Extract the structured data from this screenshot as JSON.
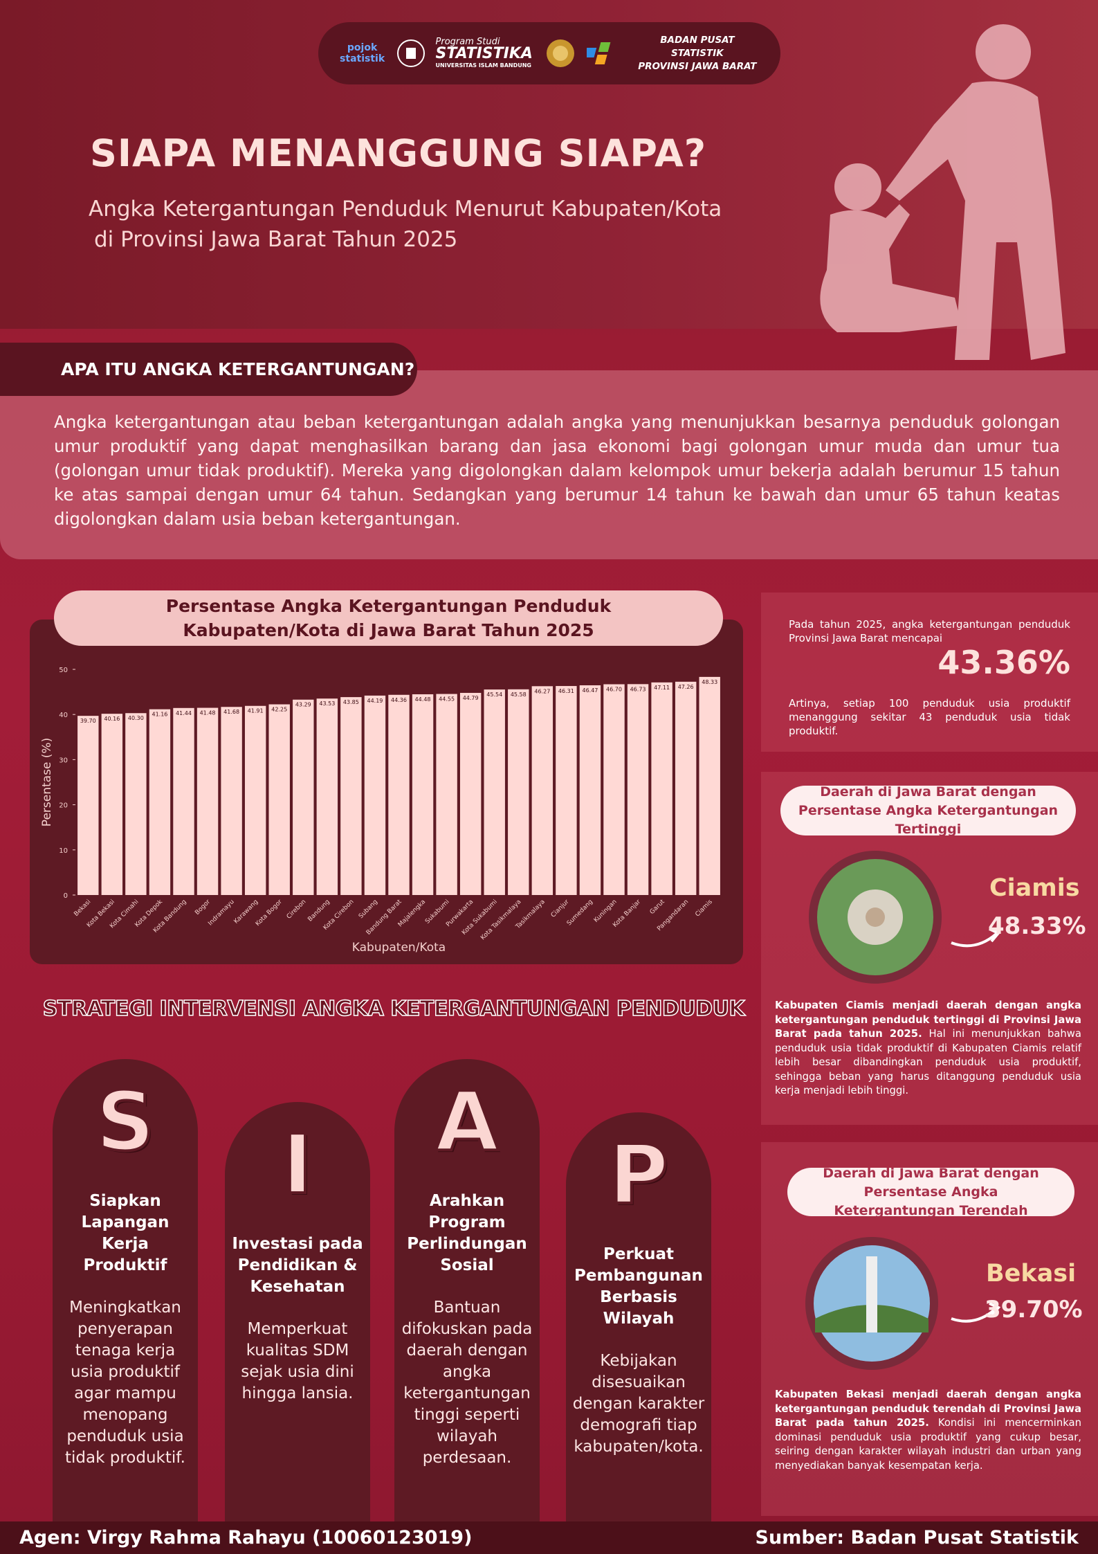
{
  "header": {
    "logos": [
      "pojok statistik",
      "Program Studi",
      "STATISTIKA",
      "UNIVERSITAS ISLAM BANDUNG",
      "BADAN PUSAT STATISTIK",
      "PROVINSI JAWA BARAT"
    ],
    "title": "SIAPA MENANGGUNG SIAPA?",
    "subtitle": [
      "Angka Ketergantungan Penduduk Menurut Kabupaten/Kota",
      "di Provinsi Jawa Barat Tahun 2025"
    ]
  },
  "definition": {
    "heading": "APA ITU ANGKA KETERGANTUNGAN?",
    "text": "Angka ketergantungan atau beban ketergantungan adalah angka yang menunjukkan besarnya penduduk golongan umur produktif yang dapat menghasilkan barang dan jasa ekonomi bagi golongan umur muda dan umur tua (golongan umur tidak produktif). Mereka yang digolongkan dalam kelompok umur bekerja adalah berumur 15 tahun ke atas sampai dengan umur 64 tahun. Sedangkan yang berumur 14 tahun ke bawah dan umur 65 tahun keatas digolongkan dalam usia beban ketergantungan."
  },
  "chart_data": {
    "type": "bar",
    "title": "Persentase Angka Ketergantungan Penduduk Kabupaten/Kota di Jawa Barat Tahun 2025",
    "x_label": "Kabupaten/Kota",
    "y_label": "Persentase (%)",
    "categories": [
      "Bekasi",
      "Kota Bekasi",
      "Kota Cimahi",
      "Kota Depok",
      "Kota Bandung",
      "Bogor",
      "Indramayu",
      "Karawang",
      "Kota Bogor",
      "Cirebon",
      "Bandung",
      "Kota Cirebon",
      "Subang",
      "Bandung Barat",
      "Majalengka",
      "Sukabumi",
      "Purwakarta",
      "Kota Sukabumi",
      "Kota Tasikmalaya",
      "Tasikmalaya",
      "Cianjur",
      "Sumedang",
      "Kuningan",
      "Kota Banjar",
      "Garut",
      "Pangandaran",
      "Ciamis"
    ],
    "values": [
      39.7,
      40.16,
      40.3,
      41.16,
      41.44,
      41.48,
      41.68,
      41.91,
      42.25,
      43.29,
      43.53,
      43.85,
      44.19,
      44.36,
      44.48,
      44.55,
      44.79,
      45.54,
      45.58,
      46.27,
      46.31,
      46.47,
      46.7,
      46.73,
      47.11,
      47.26,
      48.33
    ],
    "value_labels": [
      "39.70",
      "40.16",
      "40.30",
      "41.16",
      "41.44",
      "41.48",
      "41.68",
      "41.91",
      "42.25",
      "43.29",
      "43.53",
      "43.85",
      "44.19",
      "44.36",
      "44.48",
      "44.55",
      "44.79",
      "45.54",
      "45.58",
      "46.27",
      "46.31",
      "46.47",
      "46.70",
      "46.73",
      "47.11",
      "47.26",
      "48.33"
    ],
    "color": "#ffd9d5",
    "ylim": [
      0,
      50
    ],
    "yticks": [
      0,
      10,
      20,
      30,
      40,
      50
    ],
    "grid": false
  },
  "summary": {
    "intro": "Pada tahun 2025, angka ketergantungan penduduk Provinsi Jawa Barat mencapai",
    "value": "43.36%",
    "note": "Artinya, setiap 100 penduduk usia produktif menanggung sekitar 43 penduduk usia tidak produktif."
  },
  "highest": {
    "heading": "Daerah di Jawa Barat dengan Persentase Angka Ketergantungan Tertinggi",
    "region": "Ciamis",
    "value": "48.33%",
    "text_bold": "Kabupaten Ciamis menjadi daerah dengan angka ketergantungan penduduk tertinggi di Provinsi Jawa Barat pada tahun 2025.",
    "text": "Hal ini menunjukkan bahwa penduduk usia tidak produktif di Kabupaten Ciamis relatif lebih besar dibandingkan penduduk usia produktif, sehingga beban yang harus ditanggung penduduk usia kerja menjadi lebih tinggi."
  },
  "lowest": {
    "heading": "Daerah di Jawa Barat dengan Persentase Angka Ketergantungan Terendah",
    "region": "Bekasi",
    "value": "39.70%",
    "text_bold": "Kabupaten Bekasi menjadi daerah dengan angka ketergantungan penduduk terendah di Provinsi Jawa Barat pada tahun 2025.",
    "text": "Kondisi ini mencerminkan dominasi penduduk usia produktif yang cukup besar, seiring dengan karakter wilayah industri dan urban yang menyediakan banyak kesempatan kerja."
  },
  "strategy": {
    "title": "STRATEGI INTERVENSI ANGKA KETERGANTUNGAN PENDUDUK",
    "items": [
      {
        "letter": "S",
        "title": "Siapkan Lapangan Kerja Produktif",
        "text": "Meningkatkan penyerapan tenaga kerja usia produktif agar mampu menopang penduduk usia tidak produktif."
      },
      {
        "letter": "I",
        "title": "Investasi pada Pendidikan & Kesehatan",
        "text": "Memperkuat kualitas SDM sejak usia dini hingga lansia."
      },
      {
        "letter": "A",
        "title": "Arahkan Program Perlindungan Sosial",
        "text": "Bantuan difokuskan pada daerah dengan angka ketergantungan tinggi seperti wilayah perdesaan."
      },
      {
        "letter": "P",
        "title": "Perkuat Pembangunan Berbasis Wilayah",
        "text": "Kebijakan disesuaikan dengan karakter demografi tiap kabupaten/kota."
      }
    ]
  },
  "footer": {
    "agent": "Agen: Virgy Rahma Rahayu (10060123019)",
    "source": "Sumber: Badan Pusat Statistik"
  }
}
